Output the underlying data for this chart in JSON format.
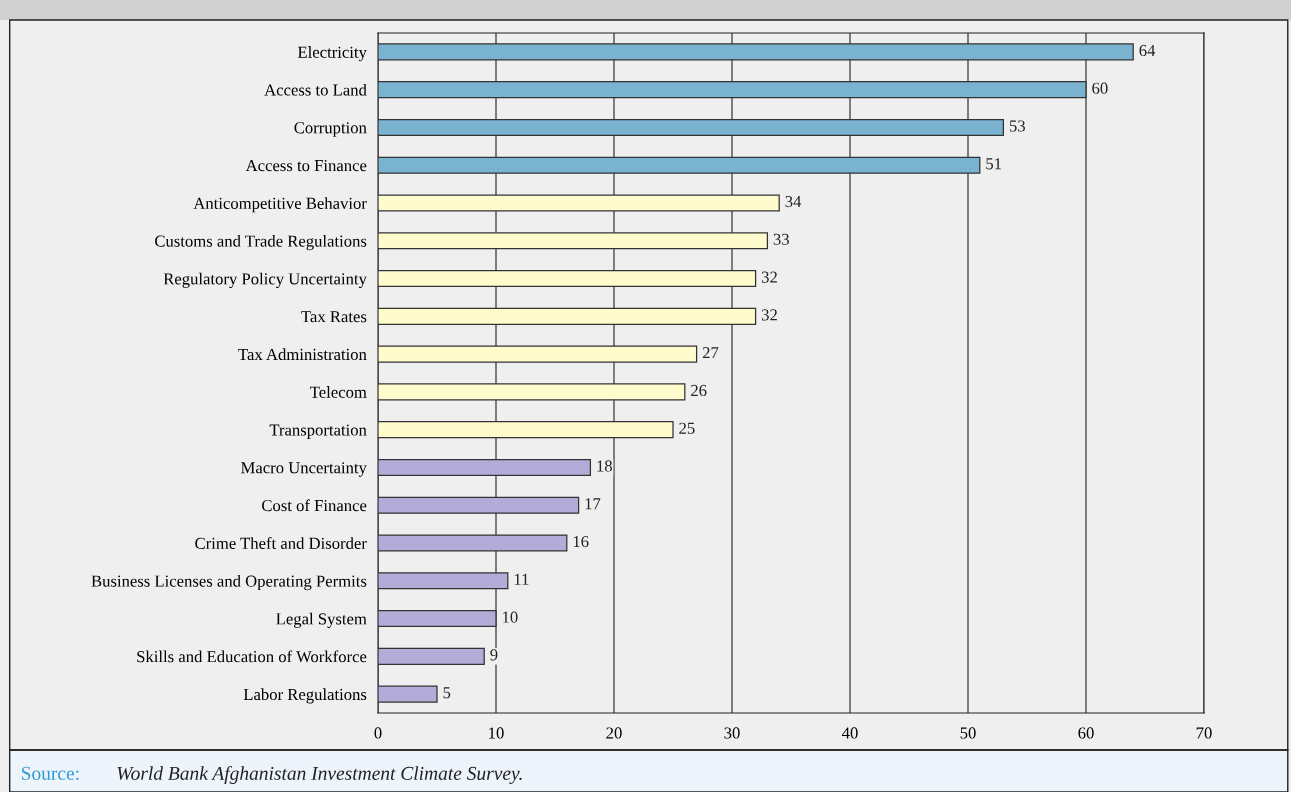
{
  "chart_data": {
    "type": "bar",
    "orientation": "horizontal",
    "categories": [
      "Electricity",
      "Access to Land",
      "Corruption",
      "Access to Finance",
      "Anticompetitive Behavior",
      "Customs and Trade Regulations",
      "Regulatory Policy Uncertainty",
      "Tax Rates",
      "Tax Administration",
      "Telecom",
      "Transportation",
      "Macro Uncertainty",
      "Cost of Finance",
      "Crime Theft and Disorder",
      "Business Licenses and Operating Permits",
      "Legal System",
      "Skills and Education of Workforce",
      "Labor Regulations"
    ],
    "values": [
      64,
      60,
      53,
      51,
      34,
      33,
      32,
      32,
      27,
      26,
      25,
      18,
      17,
      16,
      11,
      10,
      9,
      5
    ],
    "colors": [
      "#79b3cf",
      "#79b3cf",
      "#79b3cf",
      "#79b3cf",
      "#fefccc",
      "#fefccc",
      "#fefccc",
      "#fefccc",
      "#fefccc",
      "#fefccc",
      "#fefccc",
      "#b4acd8",
      "#b4acd8",
      "#b4acd8",
      "#b4acd8",
      "#b4acd8",
      "#b4acd8",
      "#b4acd8"
    ],
    "xlim": [
      0,
      70
    ],
    "xticks": [
      0,
      10,
      20,
      30,
      40,
      50,
      60,
      70
    ],
    "grid": "x",
    "data_labels": true,
    "legend": false,
    "annotations": [
      "Source:",
      "World Bank Afghanistan Investment Climate Survey."
    ]
  }
}
